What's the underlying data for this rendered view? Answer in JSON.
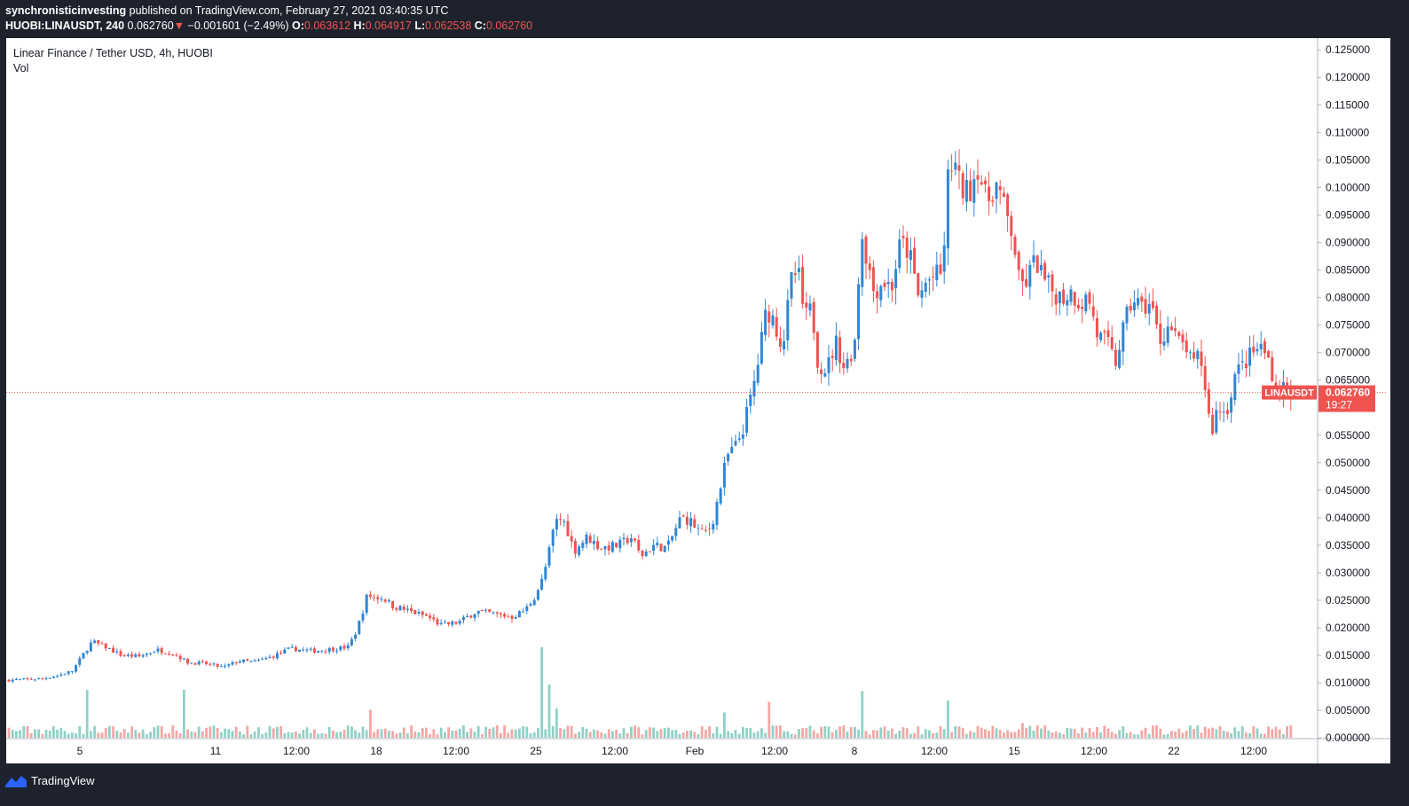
{
  "header": {
    "author": "synchronisticinvesting",
    "published": "published on TradingView.com, February 27, 2021 03:40:35 UTC",
    "symbol": "HUOBI:LINAUSDT, 240",
    "last": "0.062760",
    "arrow": "▼",
    "change": "−0.001601 (−2.49%)",
    "o_label": "O:",
    "o_value": "0.063612",
    "h_label": "H:",
    "h_value": "0.064917",
    "l_label": "L:",
    "l_value": "0.062538",
    "c_label": "C:",
    "c_value": "0.062760"
  },
  "legend": {
    "title": "Linear Finance / Tether USD, 4h, HUOBI",
    "volume_label": "Vol"
  },
  "footer": {
    "brand": "TradingView"
  },
  "colors": {
    "up": "#2f86d6",
    "down": "#ef5350",
    "vol_up": "#8fd1c6",
    "vol_down": "#f3a7a5",
    "price_line": "#ef5350"
  },
  "chart_data": {
    "type": "candlestick",
    "title": "Linear Finance / Tether USD, 4h, HUOBI",
    "xlabel": "",
    "ylabel": "",
    "ylim": [
      0,
      0.128
    ],
    "grid": false,
    "x_ticks": [
      "5",
      "11",
      "12:00",
      "18",
      "12:00",
      "25",
      "12:00",
      "Feb",
      "12:00",
      "8",
      "12:00",
      "15",
      "12:00",
      "22",
      "12:00"
    ],
    "y_ticks": [
      "0.125000",
      "0.120000",
      "0.115000",
      "0.110000",
      "0.105000",
      "0.100000",
      "0.095000",
      "0.090000",
      "0.085000",
      "0.080000",
      "0.075000",
      "0.070000",
      "0.065000",
      "0.055000",
      "0.050000",
      "0.045000",
      "0.040000",
      "0.035000",
      "0.030000",
      "0.025000",
      "0.020000",
      "0.015000",
      "0.010000",
      "0.005000",
      "0.000000"
    ],
    "last_price": {
      "symbol": "LINAUSDT",
      "value": "0.062760",
      "countdown": "19:27",
      "y": 0.06276
    },
    "series": [
      {
        "name": "LINAUSDT",
        "close_points": [
          [
            0,
            0.0105
          ],
          [
            20,
            0.0106
          ],
          [
            40,
            0.0108
          ],
          [
            58,
            0.0113
          ],
          [
            75,
            0.0122
          ],
          [
            88,
            0.0155
          ],
          [
            97,
            0.0175
          ],
          [
            112,
            0.0165
          ],
          [
            130,
            0.015
          ],
          [
            150,
            0.0148
          ],
          [
            170,
            0.016
          ],
          [
            190,
            0.0152
          ],
          [
            205,
            0.0137
          ],
          [
            225,
            0.0135
          ],
          [
            245,
            0.0128
          ],
          [
            262,
            0.014
          ],
          [
            280,
            0.0138
          ],
          [
            300,
            0.0148
          ],
          [
            320,
            0.0162
          ],
          [
            345,
            0.0158
          ],
          [
            370,
            0.0162
          ],
          [
            385,
            0.0165
          ],
          [
            393,
            0.0188
          ],
          [
            400,
            0.022
          ],
          [
            407,
            0.026
          ],
          [
            415,
            0.0255
          ],
          [
            425,
            0.0255
          ],
          [
            435,
            0.024
          ],
          [
            455,
            0.023
          ],
          [
            475,
            0.022
          ],
          [
            490,
            0.0205
          ],
          [
            510,
            0.021
          ],
          [
            530,
            0.023
          ],
          [
            550,
            0.0225
          ],
          [
            570,
            0.022
          ],
          [
            585,
            0.0232
          ],
          [
            595,
            0.0255
          ],
          [
            605,
            0.029
          ],
          [
            612,
            0.034
          ],
          [
            617,
            0.038
          ],
          [
            622,
            0.04
          ],
          [
            630,
            0.039
          ],
          [
            640,
            0.034
          ],
          [
            655,
            0.0365
          ],
          [
            670,
            0.0345
          ],
          [
            690,
            0.035
          ],
          [
            705,
            0.0365
          ],
          [
            715,
            0.033
          ],
          [
            730,
            0.035
          ],
          [
            745,
            0.0345
          ],
          [
            760,
            0.04
          ],
          [
            770,
            0.0395
          ],
          [
            785,
            0.037
          ],
          [
            795,
            0.0385
          ],
          [
            805,
            0.0455
          ],
          [
            812,
            0.051
          ],
          [
            822,
            0.053
          ],
          [
            830,
            0.056
          ],
          [
            838,
            0.061
          ],
          [
            845,
            0.066
          ],
          [
            851,
            0.072
          ],
          [
            857,
            0.078
          ],
          [
            865,
            0.076
          ],
          [
            875,
            0.071
          ],
          [
            885,
            0.083
          ],
          [
            892,
            0.085
          ],
          [
            900,
            0.076
          ],
          [
            908,
            0.078
          ],
          [
            915,
            0.068
          ],
          [
            925,
            0.067
          ],
          [
            935,
            0.072
          ],
          [
            945,
            0.067
          ],
          [
            952,
            0.07
          ],
          [
            958,
            0.073
          ],
          [
            963,
            0.093
          ],
          [
            970,
            0.087
          ],
          [
            978,
            0.081
          ],
          [
            988,
            0.083
          ],
          [
            998,
            0.082
          ],
          [
            1008,
            0.09
          ],
          [
            1018,
            0.088
          ],
          [
            1028,
            0.08
          ],
          [
            1038,
            0.083
          ],
          [
            1048,
            0.084
          ],
          [
            1055,
            0.084
          ],
          [
            1062,
            0.103
          ],
          [
            1068,
            0.105
          ],
          [
            1075,
            0.1
          ],
          [
            1085,
            0.099
          ],
          [
            1095,
            0.104
          ],
          [
            1105,
            0.097
          ],
          [
            1115,
            0.101
          ],
          [
            1125,
            0.096
          ],
          [
            1135,
            0.091
          ],
          [
            1142,
            0.082
          ],
          [
            1150,
            0.083
          ],
          [
            1160,
            0.087
          ],
          [
            1170,
            0.083
          ],
          [
            1180,
            0.081
          ],
          [
            1190,
            0.08
          ],
          [
            1200,
            0.081
          ],
          [
            1210,
            0.079
          ],
          [
            1220,
            0.08
          ],
          [
            1230,
            0.073
          ],
          [
            1240,
            0.072
          ],
          [
            1250,
            0.068
          ],
          [
            1260,
            0.075
          ],
          [
            1270,
            0.08
          ],
          [
            1280,
            0.078
          ],
          [
            1290,
            0.079
          ],
          [
            1300,
            0.072
          ],
          [
            1310,
            0.075
          ],
          [
            1320,
            0.072
          ],
          [
            1330,
            0.071
          ],
          [
            1337,
            0.067
          ],
          [
            1345,
            0.07
          ],
          [
            1352,
            0.063
          ],
          [
            1358,
            0.055
          ],
          [
            1365,
            0.06
          ],
          [
            1375,
            0.059
          ],
          [
            1385,
            0.066
          ],
          [
            1395,
            0.068
          ],
          [
            1405,
            0.07
          ],
          [
            1415,
            0.071
          ],
          [
            1425,
            0.068
          ],
          [
            1432,
            0.062
          ],
          [
            1440,
            0.064
          ],
          [
            1446,
            0.06276
          ]
        ]
      },
      {
        "name": "Vol",
        "spikes": [
          [
            90,
            0.019
          ],
          [
            93,
            0.018
          ],
          [
            200,
            0.018
          ],
          [
            409,
            0.0105
          ],
          [
            605,
            0.034
          ],
          [
            612,
            0.02
          ],
          [
            622,
            0.011
          ],
          [
            810,
            0.0095
          ],
          [
            858,
            0.0135
          ],
          [
            963,
            0.0175
          ],
          [
            1060,
            0.014
          ],
          [
            1145,
            0.0055
          ]
        ]
      }
    ]
  }
}
